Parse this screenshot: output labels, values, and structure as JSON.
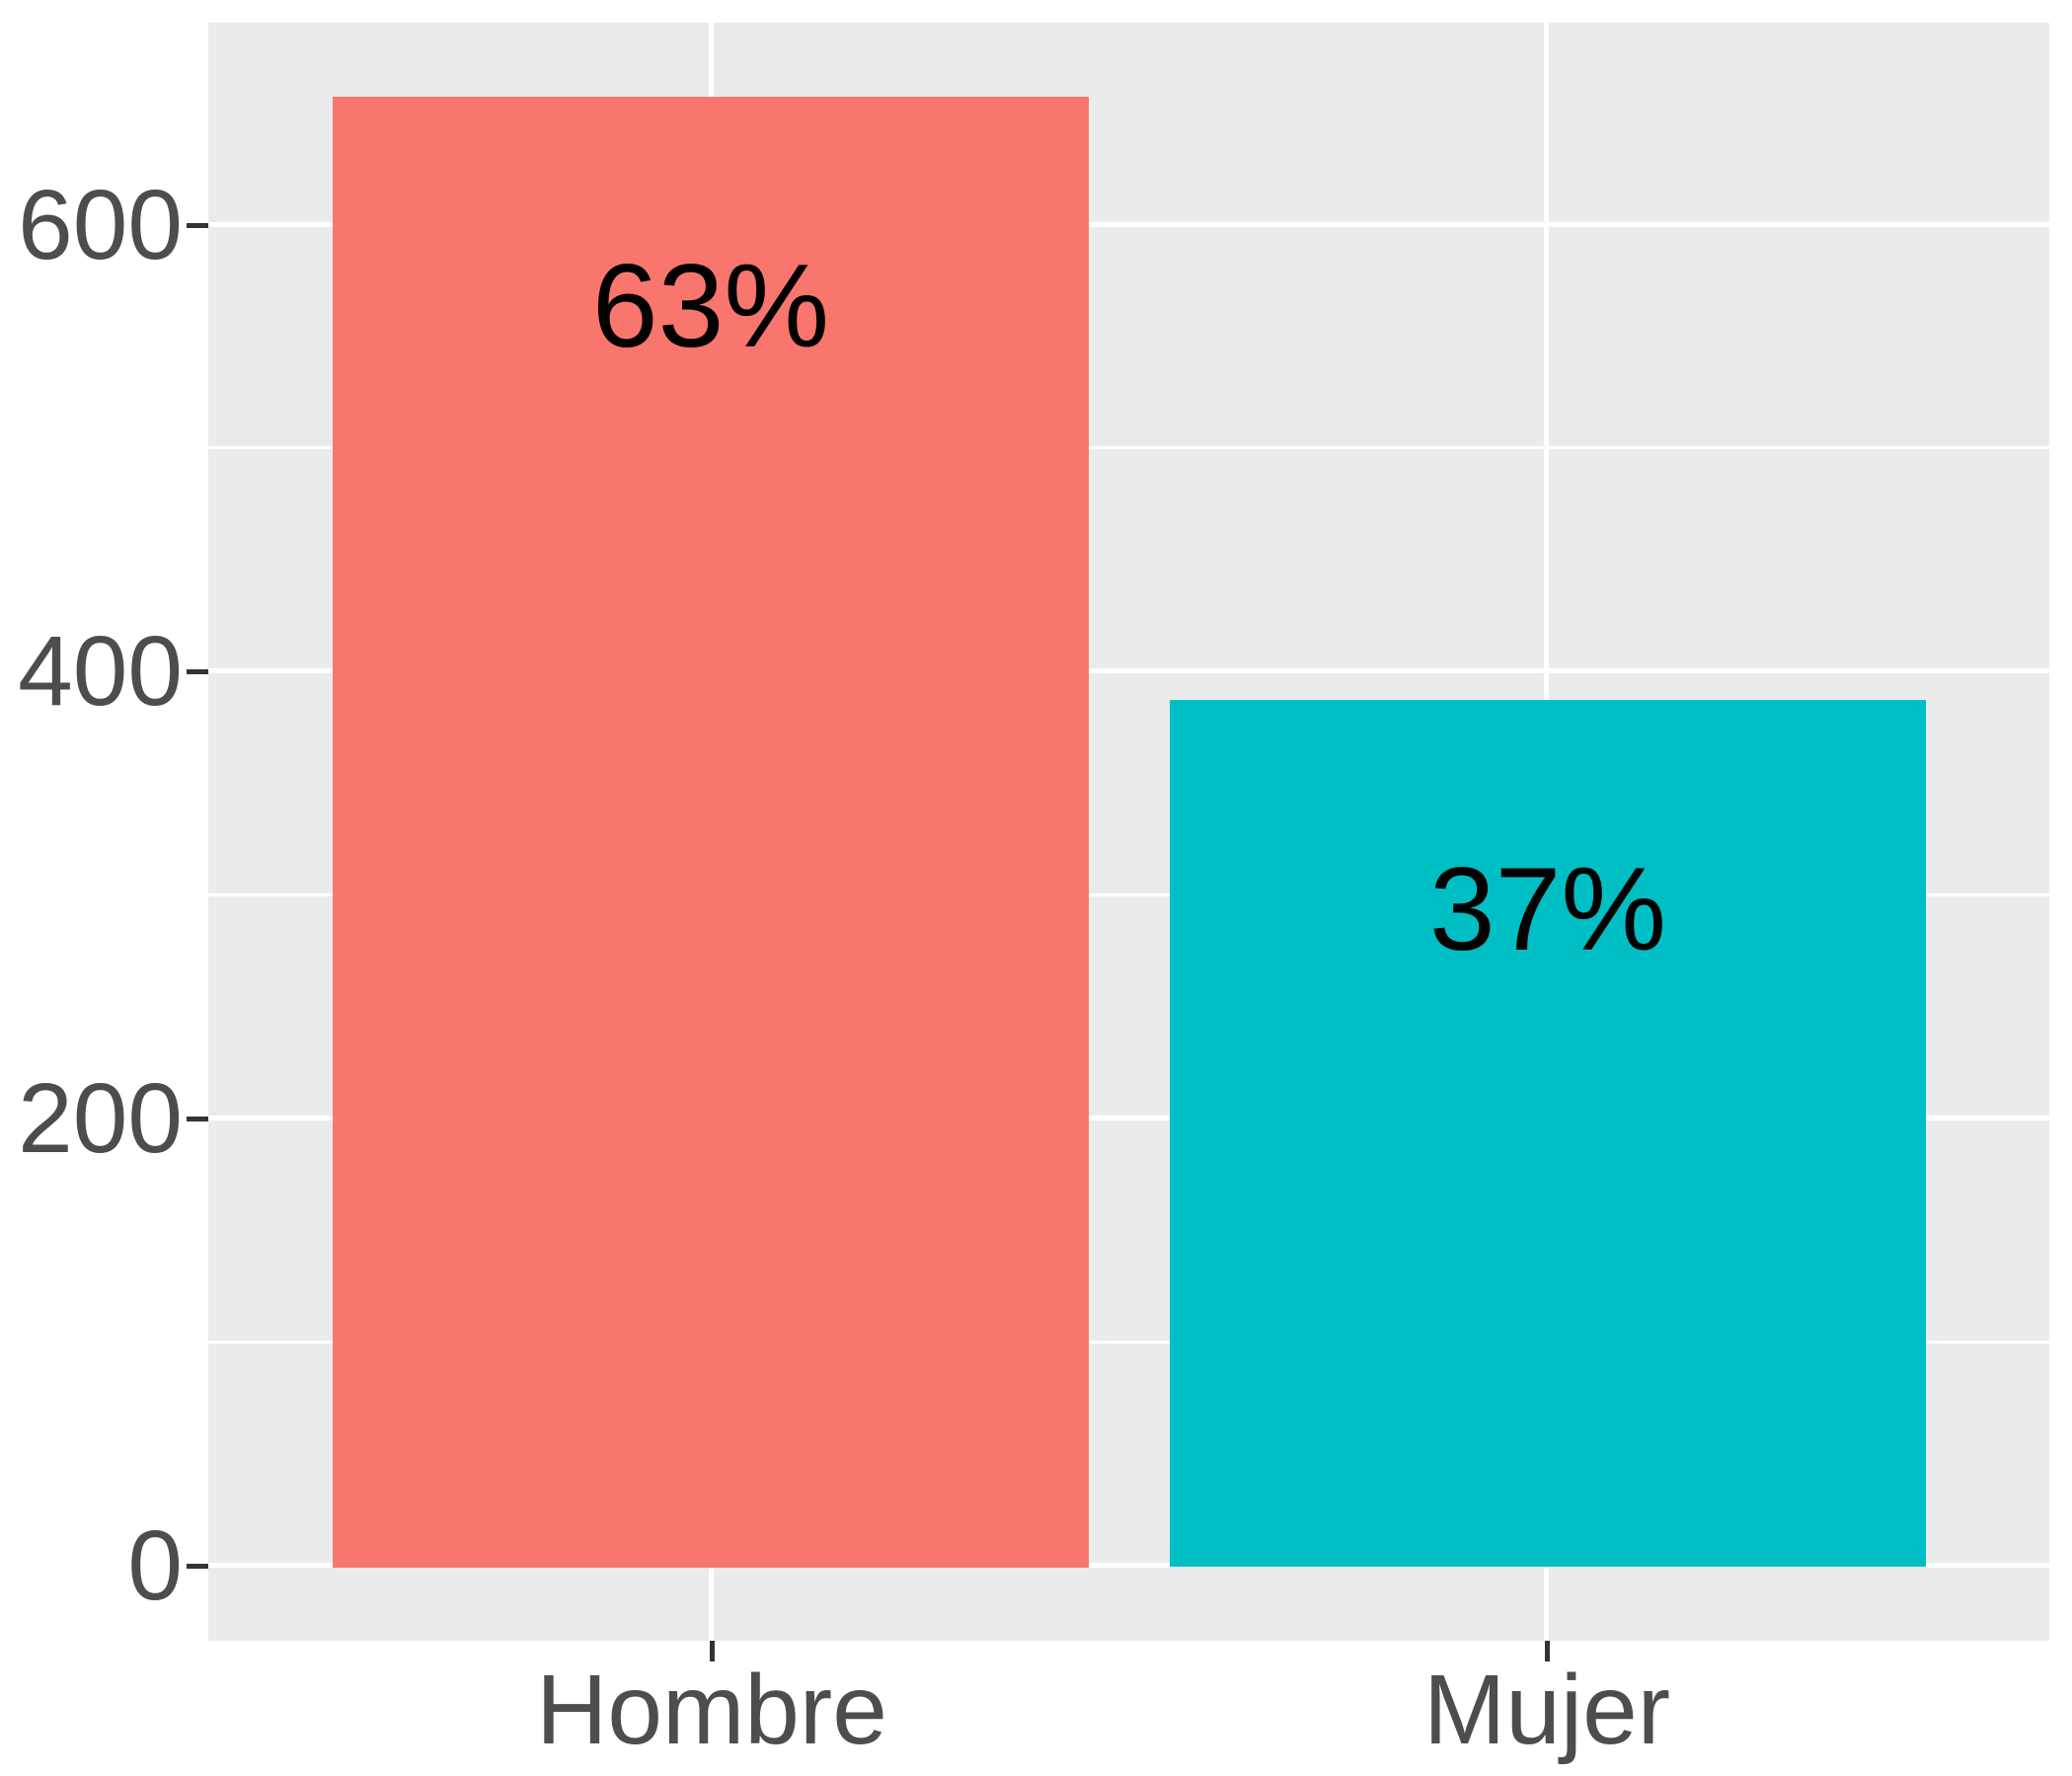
{
  "chart_data": {
    "type": "bar",
    "categories": [
      "Hombre",
      "Mujer"
    ],
    "values": [
      658,
      388
    ],
    "bar_labels": [
      "63%",
      "37%"
    ],
    "series_colors": [
      "#F8766D",
      "#00BFC4"
    ],
    "title": "",
    "xlabel": "",
    "ylabel": "",
    "ylim": [
      0,
      690
    ],
    "yticks": [
      0,
      200,
      400,
      600
    ],
    "ytick_labels": [
      "0",
      "200",
      "400",
      "600"
    ],
    "legend_position": "none",
    "grid": "white major and minor horizontal gridlines, white vertical major gridlines at category centers, on grey panel",
    "panel_bg": "#EBEBEB",
    "gridline_color": "#FFFFFF",
    "axis_text_color": "#4D4D4D",
    "tick_mark_color": "#333333",
    "bar_label_color": "#000000"
  }
}
